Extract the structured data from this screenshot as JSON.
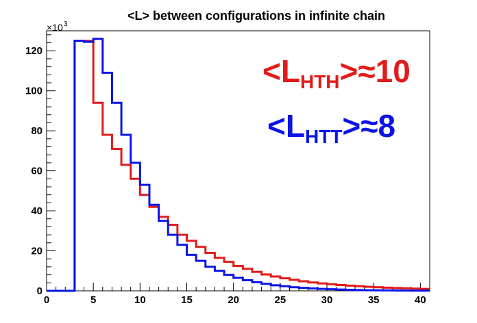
{
  "chart_data": {
    "type": "histogram",
    "title": "<L> between configurations in infinite chain",
    "xlabel": "",
    "ylabel": "",
    "y_multiplier": {
      "base": "×10",
      "exponent": "3"
    },
    "xlim": [
      0,
      41
    ],
    "ylim": [
      0,
      130
    ],
    "bin_width": 1,
    "x_ticks": [
      0,
      5,
      10,
      15,
      20,
      25,
      30,
      35,
      40
    ],
    "y_ticks": [
      0,
      20,
      40,
      60,
      80,
      100,
      120
    ],
    "grid": false,
    "series": [
      {
        "color": "#e31a1a",
        "bins_start": [
          0,
          1,
          2,
          3,
          4,
          5,
          6,
          7,
          8,
          9,
          10,
          11,
          12,
          13,
          14,
          15,
          16,
          17,
          18,
          19,
          20,
          21,
          22,
          23,
          24,
          25,
          26,
          27,
          28,
          29,
          30,
          31,
          32,
          33,
          34,
          35,
          36,
          37,
          38,
          39,
          40
        ],
        "values": [
          0,
          0,
          0,
          125,
          125,
          94,
          78,
          71,
          63,
          56,
          48,
          42,
          37,
          33,
          28,
          25,
          22,
          19,
          16.5,
          14.5,
          12.5,
          11,
          9.5,
          8.2,
          7.2,
          6.3,
          5.5,
          4.8,
          4.2,
          3.7,
          3.3,
          2.9,
          2.6,
          2.3,
          2.0,
          1.8,
          1.6,
          1.4,
          1.3,
          1.1,
          1.0
        ]
      },
      {
        "color": "#0a14e6",
        "bins_start": [
          0,
          1,
          2,
          3,
          4,
          5,
          6,
          7,
          8,
          9,
          10,
          11,
          12,
          13,
          14,
          15,
          16,
          17,
          18,
          19,
          20,
          21,
          22,
          23,
          24,
          25,
          26,
          27,
          28,
          29,
          30,
          31,
          32,
          33,
          34,
          35,
          36,
          37,
          38,
          39,
          40
        ],
        "values": [
          0,
          0,
          0,
          125,
          124.5,
          126,
          109,
          94,
          78,
          64,
          53,
          43,
          35,
          28,
          23,
          18,
          15,
          12,
          10,
          8,
          6.5,
          5.3,
          4.3,
          3.5,
          2.8,
          2.3,
          1.8,
          1.5,
          1.2,
          1.0,
          0.8,
          0.65,
          0.5,
          0.4,
          0.3,
          0.25,
          0.2,
          0.15,
          0.12,
          0.1,
          0.08
        ]
      }
    ],
    "annotations": [
      {
        "main": "<L",
        "sub": "HTH",
        "tail": ">≈10",
        "color": "#e31a1a"
      },
      {
        "main": "<L",
        "sub": "HTT",
        "tail": ">≈8",
        "color": "#0a14e6"
      }
    ]
  }
}
